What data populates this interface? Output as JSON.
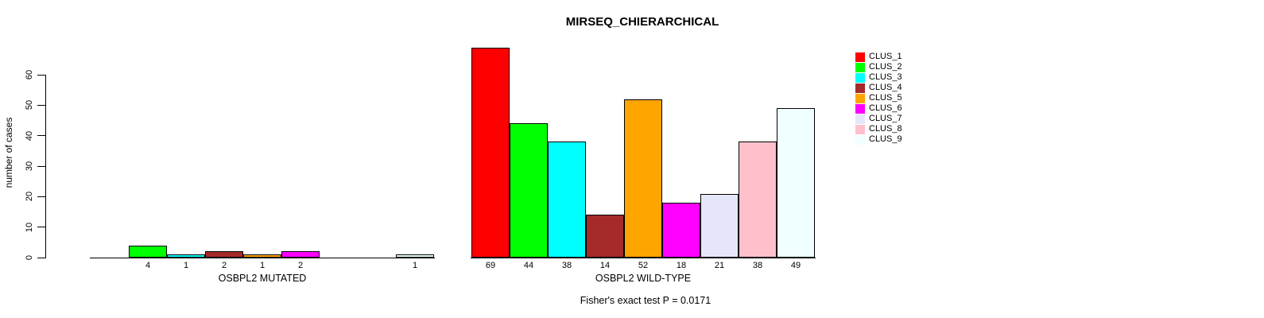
{
  "title": "MIRSEQ_CHIERARCHICAL",
  "chart_data": {
    "type": "bar",
    "title": "MIRSEQ_CHIERARCHICAL",
    "ylabel": "number of cases",
    "yticks": [
      0,
      10,
      20,
      30,
      40,
      50,
      60
    ],
    "ylim": [
      0,
      69
    ],
    "grid": false,
    "legend_position": "right",
    "categories": [
      "CLUS_1",
      "CLUS_2",
      "CLUS_3",
      "CLUS_4",
      "CLUS_5",
      "CLUS_6",
      "CLUS_7",
      "CLUS_8",
      "CLUS_9"
    ],
    "colors": [
      "#FF0000",
      "#00FF00",
      "#00FFFF",
      "#A52A2A",
      "#FFA500",
      "#FF00FF",
      "#E6E6FA",
      "#FFC0CB",
      "#F0FFFF"
    ],
    "legend": [
      {
        "label": "CLUS_1",
        "color": "#FF0000"
      },
      {
        "label": "CLUS_2",
        "color": "#00FF00"
      },
      {
        "label": "CLUS_3",
        "color": "#00FFFF"
      },
      {
        "label": "CLUS_4",
        "color": "#A52A2A"
      },
      {
        "label": "CLUS_5",
        "color": "#FFA500"
      },
      {
        "label": "CLUS_6",
        "color": "#FF00FF"
      },
      {
        "label": "CLUS_7",
        "color": "#E6E6FA"
      },
      {
        "label": "CLUS_8",
        "color": "#FFC0CB"
      },
      {
        "label": "CLUS_9",
        "color": "#F0FFFF"
      }
    ],
    "groups": [
      {
        "label": "OSBPL2 MUTATED",
        "values": [
          0,
          4,
          1,
          2,
          1,
          2,
          0,
          0,
          1
        ]
      },
      {
        "label": "OSBPL2 WILD-TYPE",
        "values": [
          69,
          44,
          38,
          14,
          52,
          18,
          21,
          38,
          49
        ]
      }
    ],
    "annotation": "Fisher's exact test P = 0.0171"
  }
}
